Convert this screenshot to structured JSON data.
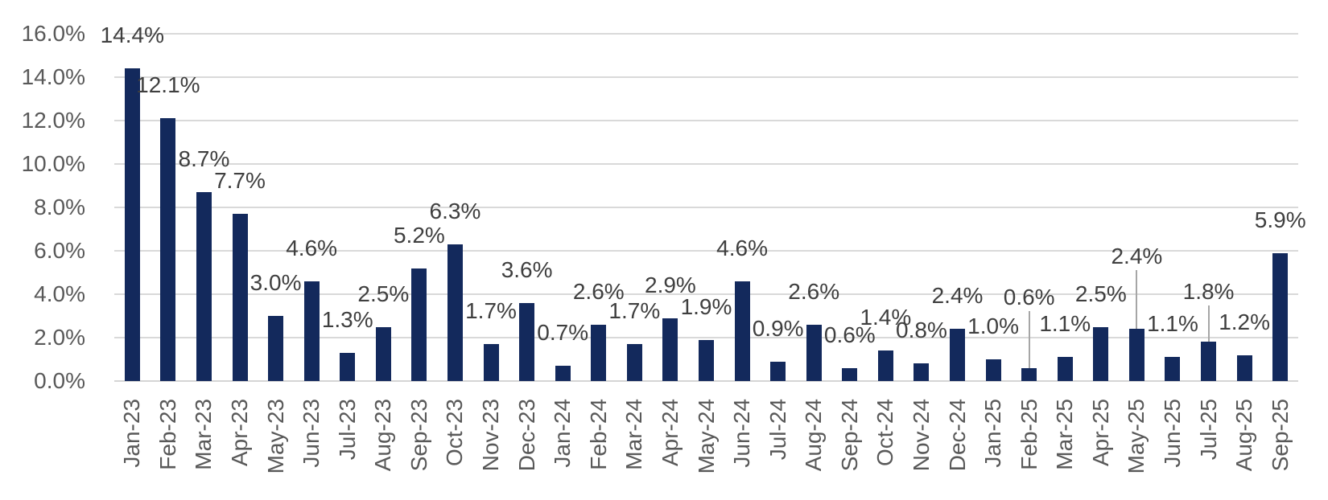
{
  "chart_data": {
    "type": "bar",
    "series_name": "",
    "categories": [
      "Jan-23",
      "Feb-23",
      "Mar-23",
      "Apr-23",
      "May-23",
      "Jun-23",
      "Jul-23",
      "Aug-23",
      "Sep-23",
      "Oct-23",
      "Nov-23",
      "Dec-23",
      "Jan-24",
      "Feb-24",
      "Mar-24",
      "Apr-24",
      "May-24",
      "Jun-24",
      "Jul-24",
      "Aug-24",
      "Sep-24",
      "Oct-24",
      "Nov-24",
      "Dec-24",
      "Jan-25",
      "Feb-25",
      "Mar-25",
      "Apr-25",
      "May-25",
      "Jun-25",
      "Jul-25",
      "Aug-25",
      "Sep-25"
    ],
    "values": [
      14.4,
      12.1,
      8.7,
      7.7,
      3.0,
      4.6,
      1.3,
      2.5,
      5.2,
      6.3,
      1.7,
      3.6,
      0.7,
      2.6,
      1.7,
      2.9,
      1.9,
      4.6,
      0.9,
      2.6,
      0.6,
      1.4,
      0.8,
      2.4,
      1.0,
      0.6,
      1.1,
      2.5,
      2.4,
      1.1,
      1.8,
      1.2,
      5.9
    ],
    "data_labels": [
      "14.4%",
      "12.1%",
      "8.7%",
      "7.7%",
      "3.0%",
      "4.6%",
      "1.3%",
      "2.5%",
      "5.2%",
      "6.3%",
      "1.7%",
      "3.6%",
      "0.7%",
      "2.6%",
      "1.7%",
      "2.9%",
      "1.9%",
      "4.6%",
      "0.9%",
      "2.6%",
      "0.6%",
      "1.4%",
      "0.8%",
      "2.4%",
      "1.0%",
      "0.6%",
      "1.1%",
      "2.5%",
      "2.4%",
      "1.1%",
      "1.8%",
      "1.2%",
      "5.9%"
    ],
    "ytick_labels": [
      "0.0%",
      "2.0%",
      "4.0%",
      "6.0%",
      "8.0%",
      "10.0%",
      "12.0%",
      "14.0%",
      "16.0%"
    ],
    "ylim": [
      0,
      16
    ],
    "ytick_step": 2,
    "xlabel": "",
    "ylabel": "",
    "grid": "horizontal",
    "legend": "none",
    "bar_color": "#13295C",
    "gridline_color": "#D9D9D9",
    "axis_line_color": "#D5D5D5",
    "axis_label_color": "#595959",
    "data_label_color": "#3F3F3F",
    "leader_line_color": "#A6A6A6",
    "callouts": [
      {
        "category": "Feb-25",
        "index": 25,
        "label_dy": -47,
        "leader_line": true
      },
      {
        "category": "May-25",
        "index": 28,
        "label_dy": -49,
        "leader_line": true
      },
      {
        "category": "Jul-25",
        "index": 30,
        "label_dy": -21,
        "leader_line": true
      }
    ]
  }
}
